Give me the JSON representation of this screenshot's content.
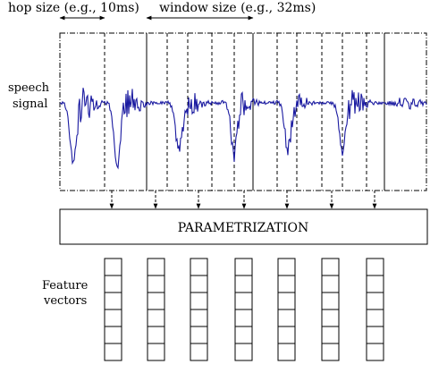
{
  "labels": {
    "hop_size": "hop size (e.g., 10ms)",
    "window_size": "window size (e.g., 32ms)",
    "speech_line1": "speech",
    "speech_line2": "signal",
    "parametrization": "PARAMETRIZATION",
    "feature_line1": "Feature",
    "feature_line2": "vectors"
  },
  "frames": {
    "count": 7
  },
  "feature_vectors": {
    "count": 7,
    "cells_per_vector": 6
  },
  "colors": {
    "signal": "#1a1aa0",
    "lines": "#000000"
  }
}
